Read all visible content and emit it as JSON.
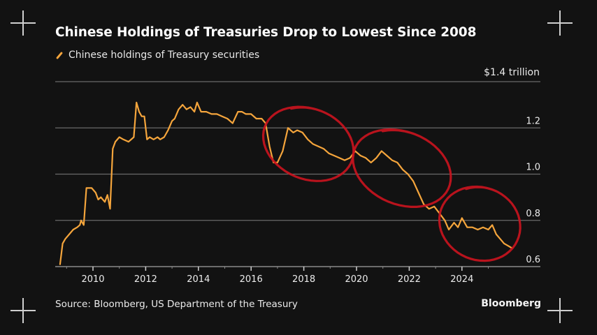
{
  "header": {
    "title": "Chinese Holdings of Treasuries Drop to Lowest Since 2008",
    "legend_label": "Chinese holdings of Treasury securities"
  },
  "footer": {
    "source": "Source: Bloomberg, US Department of the Treasury",
    "brand": "Bloomberg"
  },
  "colors": {
    "background": "#121212",
    "line": "#f5a53c",
    "annotation": "#c8141e",
    "grid": "#6a6a6a",
    "text": "#eeeeee"
  },
  "chart_data": {
    "type": "line",
    "title": "Chinese Holdings of Treasuries Drop to Lowest Since 2008",
    "xlabel": "",
    "ylabel": "$ trillion",
    "unit_label": "$1.4 trillion",
    "ylim": [
      0.6,
      1.4
    ],
    "xlim": [
      2008.6,
      2026.2
    ],
    "yticks": [
      {
        "value": 1.4,
        "label": "$1.4 trillion"
      },
      {
        "value": 1.2,
        "label": "1.2"
      },
      {
        "value": 1.0,
        "label": "1.0"
      },
      {
        "value": 0.8,
        "label": "0.8"
      },
      {
        "value": 0.6,
        "label": "0.6"
      }
    ],
    "xticks": [
      {
        "value": 2010,
        "label": "2010"
      },
      {
        "value": 2012,
        "label": "2012"
      },
      {
        "value": 2014,
        "label": "2014"
      },
      {
        "value": 2016,
        "label": "2016"
      },
      {
        "value": 2018,
        "label": "2018"
      },
      {
        "value": 2020,
        "label": "2020"
      },
      {
        "value": 2022,
        "label": "2022"
      },
      {
        "value": 2024,
        "label": "2024"
      }
    ],
    "minor_xticks": [
      2009,
      2011,
      2013,
      2015,
      2017,
      2019,
      2021,
      2023,
      2025
    ],
    "grid": true,
    "legend": "top-left",
    "series": [
      {
        "name": "Chinese holdings of Treasury securities",
        "x": [
          2008.75,
          2008.85,
          2008.95,
          2009.1,
          2009.25,
          2009.4,
          2009.5,
          2009.55,
          2009.65,
          2009.75,
          2009.85,
          2009.95,
          2010.1,
          2010.2,
          2010.3,
          2010.45,
          2010.55,
          2010.65,
          2010.75,
          2010.85,
          2011.0,
          2011.15,
          2011.35,
          2011.55,
          2011.65,
          2011.75,
          2011.85,
          2011.95,
          2012.05,
          2012.15,
          2012.3,
          2012.45,
          2012.55,
          2012.7,
          2012.85,
          2013.0,
          2013.1,
          2013.25,
          2013.4,
          2013.55,
          2013.7,
          2013.85,
          2013.95,
          2014.1,
          2014.3,
          2014.5,
          2014.7,
          2014.9,
          2015.1,
          2015.3,
          2015.5,
          2015.65,
          2015.8,
          2016.0,
          2016.2,
          2016.4,
          2016.55,
          2016.7,
          2016.85,
          2017.0,
          2017.2,
          2017.4,
          2017.6,
          2017.75,
          2017.95,
          2018.15,
          2018.35,
          2018.55,
          2018.75,
          2018.95,
          2019.15,
          2019.35,
          2019.55,
          2019.75,
          2019.95,
          2020.15,
          2020.35,
          2020.55,
          2020.75,
          2020.95,
          2021.15,
          2021.35,
          2021.55,
          2021.75,
          2021.95,
          2022.15,
          2022.35,
          2022.55,
          2022.75,
          2022.95,
          2023.15,
          2023.35,
          2023.5,
          2023.7,
          2023.85,
          2024.0,
          2024.2,
          2024.4,
          2024.6,
          2024.8,
          2025.0,
          2025.15,
          2025.3,
          2025.45,
          2025.6,
          2025.75,
          2025.9
        ],
        "values": [
          0.61,
          0.7,
          0.72,
          0.74,
          0.76,
          0.77,
          0.78,
          0.8,
          0.78,
          0.94,
          0.94,
          0.94,
          0.92,
          0.89,
          0.9,
          0.88,
          0.91,
          0.85,
          1.11,
          1.14,
          1.16,
          1.15,
          1.14,
          1.16,
          1.31,
          1.27,
          1.25,
          1.25,
          1.15,
          1.16,
          1.15,
          1.16,
          1.15,
          1.16,
          1.19,
          1.23,
          1.24,
          1.28,
          1.3,
          1.28,
          1.29,
          1.27,
          1.31,
          1.27,
          1.27,
          1.26,
          1.26,
          1.25,
          1.24,
          1.22,
          1.27,
          1.27,
          1.26,
          1.26,
          1.24,
          1.24,
          1.22,
          1.12,
          1.05,
          1.05,
          1.1,
          1.2,
          1.18,
          1.19,
          1.18,
          1.15,
          1.13,
          1.12,
          1.11,
          1.09,
          1.08,
          1.07,
          1.06,
          1.07,
          1.1,
          1.08,
          1.07,
          1.05,
          1.07,
          1.1,
          1.08,
          1.06,
          1.05,
          1.02,
          1.0,
          0.97,
          0.92,
          0.87,
          0.85,
          0.86,
          0.83,
          0.8,
          0.76,
          0.79,
          0.77,
          0.81,
          0.77,
          0.77,
          0.76,
          0.77,
          0.76,
          0.78,
          0.74,
          0.72,
          0.7,
          0.69,
          0.68
        ]
      }
    ],
    "annotations": [
      {
        "type": "hand-drawn-circle",
        "label": "drop 2016-2019",
        "x_range": [
          2016.5,
          2019.9
        ],
        "y_range": [
          0.97,
          1.29
        ]
      },
      {
        "type": "hand-drawn-circle",
        "label": "decline 2020-2023",
        "x_range": [
          2019.9,
          2023.6
        ],
        "y_range": [
          0.86,
          1.19
        ]
      },
      {
        "type": "hand-drawn-circle",
        "label": "decline 2023-2026",
        "x_range": [
          2023.2,
          2026.2
        ],
        "y_range": [
          0.62,
          0.95
        ]
      }
    ]
  }
}
